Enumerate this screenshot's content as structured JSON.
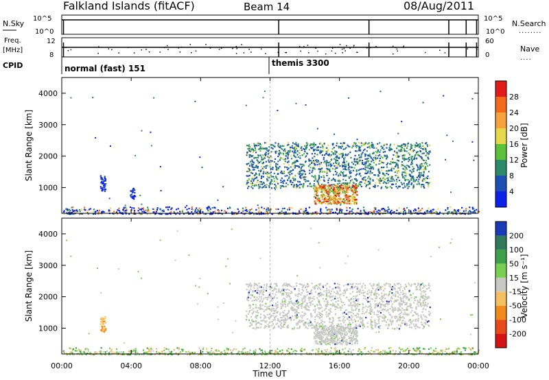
{
  "header": {
    "title": "Falkland Islands (fitACF)",
    "beam": "Beam 14",
    "date": "08/Aug/2011"
  },
  "status_panel": {
    "left_labels": [
      "N.Sky",
      "Freq.",
      "[MHz]",
      "CPID"
    ],
    "right_labels": [
      "N.Search",
      "Nave"
    ],
    "right_dots": [
      "........",
      "...."
    ],
    "nsky_ticks": [
      "10^5",
      "10^0"
    ],
    "nsearch_ticks": [
      "10^5",
      "10^0"
    ],
    "freq_ticks": [
      "12",
      "8"
    ],
    "nave_ticks": [
      "60",
      "0"
    ],
    "cpid": [
      {
        "label": "normal (fast) 151",
        "start_hour": 0.1
      },
      {
        "label": "themis 3300",
        "start_hour": 12.0
      }
    ],
    "nsky_dropouts_hours": [
      0.1,
      12.5,
      17.7,
      22.3,
      23.3,
      23.9
    ],
    "freq_dropouts_hours": [
      0.1,
      12.5,
      17.7,
      22.3,
      23.3,
      23.9
    ]
  },
  "chart_data": [
    {
      "type": "heatmap",
      "name": "power",
      "xlabel": "Time UT",
      "ylabel": "Slant Range [km]",
      "xlim": [
        0,
        24
      ],
      "ylim": [
        180,
        4500
      ],
      "x_ticks": [
        "00:00",
        "04:00",
        "08:00",
        "12:00",
        "16:00",
        "20:00",
        "00:00"
      ],
      "x_tick_values": [
        0,
        4,
        8,
        12,
        16,
        20,
        24
      ],
      "y_ticks": [
        1000,
        2000,
        3000,
        4000
      ],
      "colorbar": {
        "label": "Power [dB]",
        "ticks": [
          "4",
          "8",
          "12",
          "16",
          "20",
          "24",
          "28"
        ],
        "colors": [
          "#0c22e8",
          "#1e4fb2",
          "#2a8a6a",
          "#5cc03a",
          "#e6d84a",
          "#f7a23c",
          "#f36b1a",
          "#e31a1a"
        ]
      },
      "regions": [
        {
          "t0": 10.6,
          "t1": 21.2,
          "r0": 1000,
          "r1": 2450,
          "level": "mid"
        },
        {
          "t0": 14.5,
          "t1": 17.0,
          "r0": 500,
          "r1": 1100,
          "level": "high"
        },
        {
          "t0": 2.2,
          "t1": 2.5,
          "r0": 900,
          "r1": 1400,
          "level": "low"
        },
        {
          "t0": 3.9,
          "t1": 4.2,
          "r0": 650,
          "r1": 1000,
          "level": "low"
        },
        {
          "t0": 0.0,
          "t1": 24.0,
          "r0": 180,
          "r1": 400,
          "level": "ground"
        }
      ]
    },
    {
      "type": "heatmap",
      "name": "velocity",
      "xlabel": "Time UT",
      "ylabel": "Slant Range [km]",
      "xlim": [
        0,
        24
      ],
      "ylim": [
        180,
        4500
      ],
      "x_ticks": [
        "00:00",
        "04:00",
        "08:00",
        "12:00",
        "16:00",
        "20:00",
        "00:00"
      ],
      "x_tick_values": [
        0,
        4,
        8,
        12,
        16,
        20,
        24
      ],
      "y_ticks": [
        1000,
        2000,
        3000,
        4000
      ],
      "colorbar": {
        "label": "Velocity [m s⁻¹]",
        "ticks": [
          "200",
          "100",
          "50",
          "15",
          "-15",
          "-50",
          "-100",
          "-200"
        ],
        "colors": [
          "#1a3ab8",
          "#2f7a5a",
          "#3ea04a",
          "#78d050",
          "#c8c8c4",
          "#f5c060",
          "#f08a1a",
          "#e84a1a",
          "#d41414"
        ]
      },
      "regions": [
        {
          "t0": 10.6,
          "t1": 21.2,
          "r0": 1000,
          "r1": 2450,
          "level": "grey"
        },
        {
          "t0": 14.5,
          "t1": 17.0,
          "r0": 500,
          "r1": 1100,
          "level": "grey"
        },
        {
          "t0": 2.2,
          "t1": 2.5,
          "r0": 900,
          "r1": 1400,
          "level": "orange"
        },
        {
          "t0": 0.0,
          "t1": 24.0,
          "r0": 180,
          "r1": 400,
          "level": "ground"
        }
      ]
    }
  ]
}
